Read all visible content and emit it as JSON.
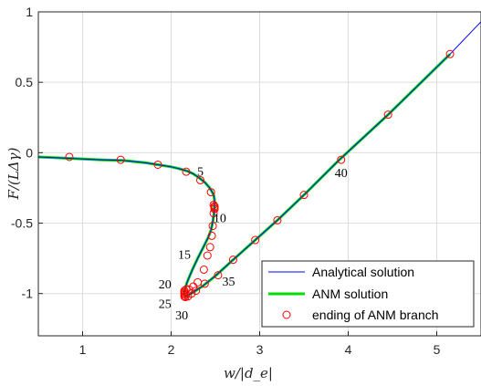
{
  "chart_data": {
    "type": "line",
    "title": "",
    "xlabel": "w/|d_e|",
    "ylabel": "F/(LΔγ)",
    "xlim": [
      0.5,
      5.5
    ],
    "ylim": [
      -1.3,
      1.0
    ],
    "xticks": [
      1,
      2,
      3,
      4,
      5
    ],
    "yticks": [
      -1,
      -0.5,
      0,
      0.5,
      1
    ],
    "xtick_labels": [
      "1",
      "2",
      "3",
      "4",
      "5"
    ],
    "ytick_labels": [
      "-1",
      "-0.5",
      "0",
      "0.5",
      "1"
    ],
    "grid": true,
    "legend_position": "bottom-right",
    "colors": {
      "analytical": "#0000ff",
      "anm": "#00dd00",
      "marker": "#ff0000"
    },
    "series": [
      {
        "name": "Analytical solution",
        "style": "line",
        "x": [
          0.5,
          0.85,
          1.2,
          1.45,
          1.7,
          1.85,
          2.0,
          2.1,
          2.18,
          2.25,
          2.32,
          2.38,
          2.43,
          2.46,
          2.48,
          2.49,
          2.49,
          2.485,
          2.47,
          2.45,
          2.42,
          2.38,
          2.34,
          2.3,
          2.27,
          2.24,
          2.22,
          2.2,
          2.18,
          2.165,
          2.155,
          2.15,
          2.155,
          2.17,
          2.2,
          2.25,
          2.35,
          2.5,
          2.7,
          2.95,
          3.2,
          3.5,
          3.9,
          4.45,
          5.15,
          5.5
        ],
        "y": [
          -0.03,
          -0.04,
          -0.05,
          -0.055,
          -0.07,
          -0.085,
          -0.1,
          -0.115,
          -0.13,
          -0.15,
          -0.18,
          -0.21,
          -0.245,
          -0.275,
          -0.3,
          -0.33,
          -0.38,
          -0.43,
          -0.49,
          -0.55,
          -0.6,
          -0.65,
          -0.7,
          -0.75,
          -0.79,
          -0.83,
          -0.86,
          -0.89,
          -0.92,
          -0.95,
          -0.97,
          -0.99,
          -1.01,
          -1.02,
          -1.01,
          -0.99,
          -0.95,
          -0.875,
          -0.76,
          -0.62,
          -0.48,
          -0.3,
          -0.05,
          0.27,
          0.7,
          0.93
        ]
      },
      {
        "name": "ANM solution",
        "style": "line",
        "x": [
          0.5,
          0.85,
          1.2,
          1.45,
          1.7,
          1.85,
          2.0,
          2.1,
          2.18,
          2.25,
          2.32,
          2.38,
          2.43,
          2.46,
          2.48,
          2.49,
          2.49,
          2.485,
          2.47,
          2.45,
          2.42,
          2.38,
          2.34,
          2.3,
          2.27,
          2.24,
          2.22,
          2.2,
          2.18,
          2.165,
          2.155,
          2.15,
          2.155,
          2.17,
          2.2,
          2.25,
          2.35,
          2.5,
          2.7,
          2.95,
          3.2,
          3.5,
          3.9,
          4.45,
          5.15
        ],
        "y": [
          -0.03,
          -0.04,
          -0.05,
          -0.055,
          -0.07,
          -0.085,
          -0.1,
          -0.115,
          -0.13,
          -0.15,
          -0.18,
          -0.21,
          -0.245,
          -0.275,
          -0.3,
          -0.33,
          -0.38,
          -0.43,
          -0.49,
          -0.55,
          -0.6,
          -0.65,
          -0.7,
          -0.75,
          -0.79,
          -0.83,
          -0.86,
          -0.89,
          -0.92,
          -0.95,
          -0.97,
          -0.99,
          -1.01,
          -1.02,
          -1.01,
          -0.99,
          -0.95,
          -0.875,
          -0.76,
          -0.62,
          -0.48,
          -0.3,
          -0.05,
          0.27,
          0.7
        ]
      },
      {
        "name": "ending of ANM branch",
        "style": "markers",
        "x": [
          0.85,
          1.43,
          1.85,
          2.17,
          2.33,
          2.45,
          2.48,
          2.49,
          2.49,
          2.49,
          2.48,
          2.47,
          2.46,
          2.44,
          2.41,
          2.37,
          2.3,
          2.25,
          2.2,
          2.17,
          2.15,
          2.15,
          2.15,
          2.15,
          2.15,
          2.16,
          2.19,
          2.23,
          2.28,
          2.38,
          2.53,
          2.7,
          2.95,
          3.2,
          3.5,
          3.92,
          4.45,
          5.15
        ],
        "y": [
          -0.03,
          -0.05,
          -0.085,
          -0.135,
          -0.195,
          -0.28,
          -0.37,
          -0.38,
          -0.39,
          -0.4,
          -0.43,
          -0.52,
          -0.59,
          -0.67,
          -0.73,
          -0.83,
          -0.92,
          -0.95,
          -0.97,
          -0.97,
          -0.98,
          -0.99,
          -1.0,
          -1.01,
          -1.02,
          -1.025,
          -1.02,
          -1.0,
          -0.98,
          -0.93,
          -0.87,
          -0.76,
          -0.62,
          -0.48,
          -0.3,
          -0.05,
          0.27,
          0.7
        ]
      }
    ],
    "annotations": [
      {
        "text": "5",
        "x": 2.33,
        "y": -0.13
      },
      {
        "text": "10",
        "x": 2.55,
        "y": -0.46
      },
      {
        "text": "15",
        "x": 2.15,
        "y": -0.72
      },
      {
        "text": "20",
        "x": 1.93,
        "y": -0.93
      },
      {
        "text": "25",
        "x": 1.93,
        "y": -1.07
      },
      {
        "text": "30",
        "x": 2.12,
        "y": -1.15
      },
      {
        "text": "35",
        "x": 2.65,
        "y": -0.91
      },
      {
        "text": "40",
        "x": 3.92,
        "y": -0.14
      }
    ]
  }
}
